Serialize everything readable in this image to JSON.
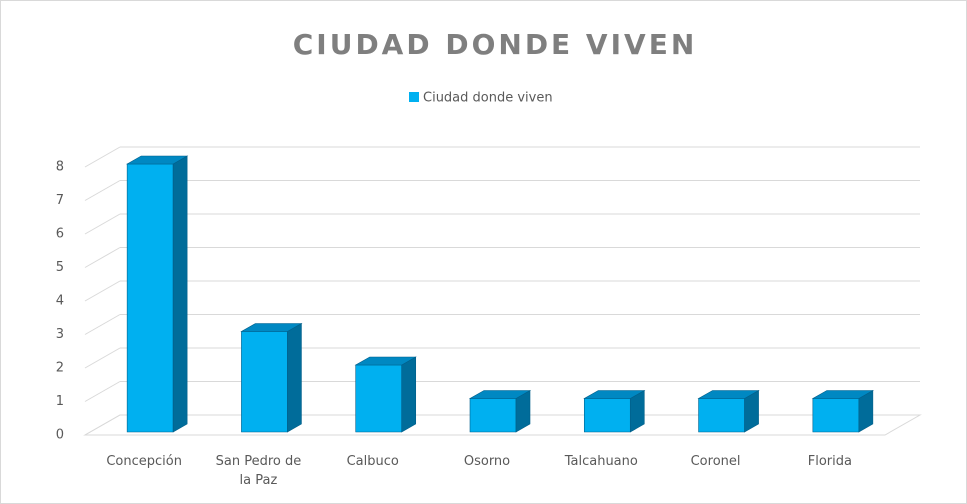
{
  "chart_data": {
    "type": "bar3d",
    "title": "CIUDAD DONDE VIVEN",
    "categories": [
      "Concepción",
      "San Pedro de la Paz",
      "Calbuco",
      "Osorno",
      "Talcahuano",
      "Coronel",
      "Florida"
    ],
    "series": [
      {
        "name": "Ciudad donde viven",
        "color": "#00b0f0",
        "values": [
          8,
          3,
          2,
          1,
          1,
          1,
          1
        ]
      }
    ],
    "ylim": [
      0,
      8
    ],
    "yticks": [
      0,
      1,
      2,
      3,
      4,
      5,
      6,
      7,
      8
    ],
    "grid": true,
    "legend": "top"
  }
}
